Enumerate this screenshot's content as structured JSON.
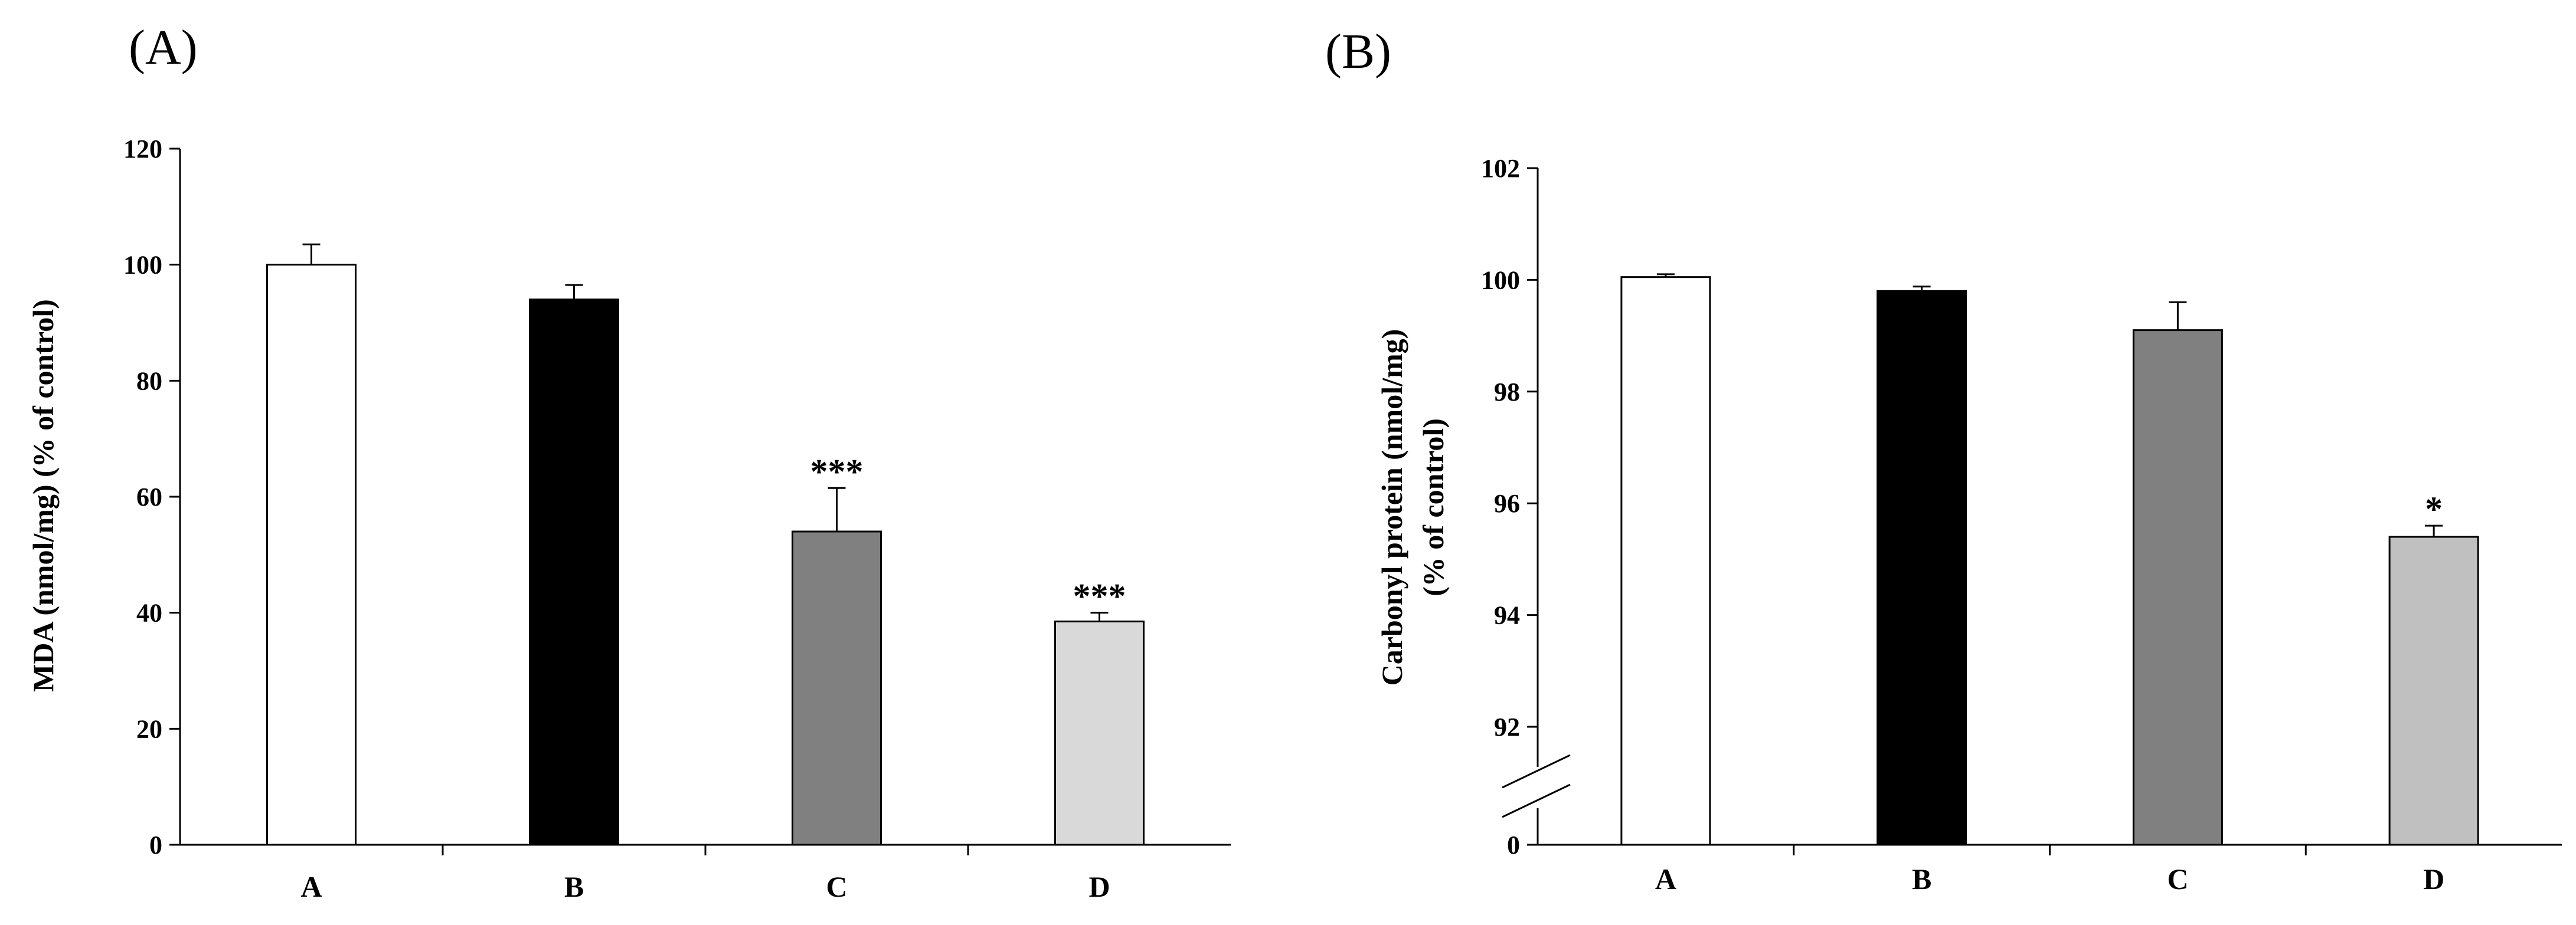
{
  "chart_data": [
    {
      "panel": "(A)",
      "type": "bar",
      "categories": [
        "A",
        "B",
        "C",
        "D"
      ],
      "values": [
        100,
        94,
        54,
        38.5
      ],
      "errors": [
        3.5,
        2.5,
        7.5,
        1.5
      ],
      "significance": [
        "",
        "",
        "***",
        "***"
      ],
      "colors": [
        "#ffffff",
        "#000000",
        "#808080",
        "#d9d9d9"
      ],
      "ylabel": "MDA (nmol/mg) (% of control)",
      "ylim": [
        0,
        120
      ],
      "yticks": [
        "0",
        "20",
        "40",
        "60",
        "80",
        "100",
        "120"
      ],
      "ytick_values": [
        0,
        20,
        40,
        60,
        80,
        100,
        120
      ],
      "grid": false
    },
    {
      "panel": "(B)",
      "type": "bar",
      "categories": [
        "A",
        "B",
        "C",
        "D"
      ],
      "values": [
        100.05,
        99.8,
        99.1,
        95.4
      ],
      "errors": [
        0.05,
        0.08,
        0.5,
        0.2
      ],
      "significance": [
        "",
        "",
        "",
        "*"
      ],
      "colors": [
        "#ffffff",
        "#000000",
        "#808080",
        "#c0c0c0"
      ],
      "ylabel": "Carbonyl protein (nmol/mg)",
      "ylabel2": "(% of control)",
      "ylim": [
        92,
        102
      ],
      "axis_break": true,
      "yticks": [
        "0",
        "92",
        "94",
        "96",
        "98",
        "100",
        "102"
      ],
      "ytick_values": [
        0,
        92,
        94,
        96,
        98,
        100,
        102
      ],
      "grid": false
    }
  ]
}
